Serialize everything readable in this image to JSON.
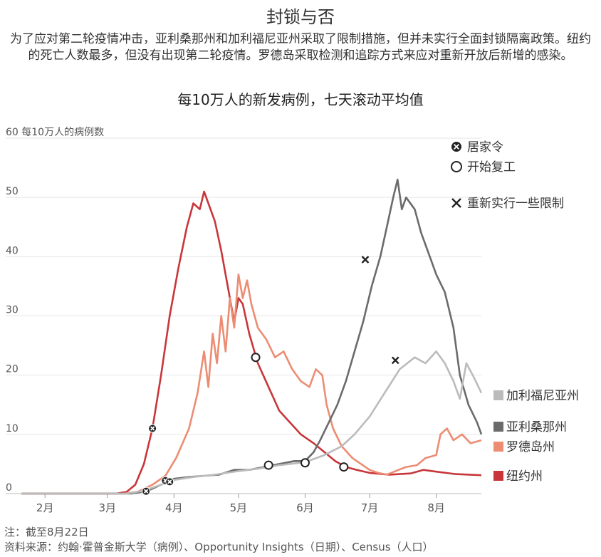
{
  "title": "封锁与否",
  "description": "为了应对第二轮疫情冲击，亚利桑那州和加利福尼亚州采取了限制措施，但并未实行全面封锁隔离政策。纽约的死亡人数最多，但没有出现第二轮疫情。罗德岛采取检测和追踪方式来应对重新开放后新增的感染。",
  "footnote": "注：截至8月22日",
  "source": "资料来源：约翰·霍普金斯大学（病例）、Opportunity Insights（日期）、Census（人口）",
  "chart_data": {
    "type": "line",
    "title": "每10万人的新发病例，七天滚动平均值",
    "ylabel": "每10万人的病例数",
    "ylim": [
      0,
      60
    ],
    "yticks": [
      0,
      10,
      20,
      30,
      40,
      50,
      60
    ],
    "xlim": [
      "2020-01-21",
      "2020-08-22"
    ],
    "xticks": [
      {
        "label": "2月",
        "date": "2020-02-01"
      },
      {
        "label": "3月",
        "date": "2020-03-01"
      },
      {
        "label": "4月",
        "date": "2020-04-01"
      },
      {
        "label": "5月",
        "date": "2020-05-01"
      },
      {
        "label": "6月",
        "date": "2020-06-01"
      },
      {
        "label": "7月",
        "date": "2020-07-01"
      },
      {
        "label": "8月",
        "date": "2020-08-01"
      }
    ],
    "legend": [
      {
        "symbol": "circle-x",
        "label": "居家令"
      },
      {
        "symbol": "circle",
        "label": "开始复工"
      },
      {
        "symbol": "x",
        "label": "重新实行一些限制"
      }
    ],
    "series": [
      {
        "name": "纽约州",
        "color": "#c8363a",
        "points": [
          [
            "2020-01-21",
            0
          ],
          [
            "2020-03-05",
            0
          ],
          [
            "2020-03-10",
            0.3
          ],
          [
            "2020-03-14",
            1.5
          ],
          [
            "2020-03-18",
            5
          ],
          [
            "2020-03-22",
            11
          ],
          [
            "2020-03-26",
            20
          ],
          [
            "2020-03-30",
            30
          ],
          [
            "2020-04-03",
            38
          ],
          [
            "2020-04-07",
            45
          ],
          [
            "2020-04-10",
            49
          ],
          [
            "2020-04-13",
            48
          ],
          [
            "2020-04-15",
            51
          ],
          [
            "2020-04-17",
            49
          ],
          [
            "2020-04-20",
            46
          ],
          [
            "2020-04-23",
            41
          ],
          [
            "2020-04-26",
            35
          ],
          [
            "2020-04-29",
            29
          ],
          [
            "2020-05-01",
            33
          ],
          [
            "2020-05-03",
            32
          ],
          [
            "2020-05-06",
            27
          ],
          [
            "2020-05-10",
            22
          ],
          [
            "2020-05-15",
            18
          ],
          [
            "2020-05-20",
            14
          ],
          [
            "2020-05-25",
            12
          ],
          [
            "2020-05-30",
            10
          ],
          [
            "2020-06-05",
            8.5
          ],
          [
            "2020-06-10",
            7
          ],
          [
            "2020-06-15",
            5.5
          ],
          [
            "2020-06-20",
            4.5
          ],
          [
            "2020-06-25",
            4
          ],
          [
            "2020-07-01",
            3.5
          ],
          [
            "2020-07-10",
            3.2
          ],
          [
            "2020-07-20",
            3.4
          ],
          [
            "2020-07-26",
            4
          ],
          [
            "2020-08-01",
            3.7
          ],
          [
            "2020-08-10",
            3.3
          ],
          [
            "2020-08-22",
            3.1
          ]
        ]
      },
      {
        "name": "罗德岛州",
        "color": "#ec8c73",
        "points": [
          [
            "2020-01-21",
            0
          ],
          [
            "2020-03-08",
            0
          ],
          [
            "2020-03-15",
            0.3
          ],
          [
            "2020-03-22",
            1.5
          ],
          [
            "2020-03-28",
            3
          ],
          [
            "2020-04-02",
            6
          ],
          [
            "2020-04-08",
            11
          ],
          [
            "2020-04-12",
            17
          ],
          [
            "2020-04-15",
            24
          ],
          [
            "2020-04-17",
            18
          ],
          [
            "2020-04-19",
            27
          ],
          [
            "2020-04-21",
            22
          ],
          [
            "2020-04-23",
            30
          ],
          [
            "2020-04-25",
            24
          ],
          [
            "2020-04-27",
            33
          ],
          [
            "2020-04-29",
            28
          ],
          [
            "2020-05-01",
            37
          ],
          [
            "2020-05-03",
            33
          ],
          [
            "2020-05-05",
            36
          ],
          [
            "2020-05-07",
            32
          ],
          [
            "2020-05-10",
            28
          ],
          [
            "2020-05-14",
            26
          ],
          [
            "2020-05-18",
            23
          ],
          [
            "2020-05-22",
            24
          ],
          [
            "2020-05-26",
            21
          ],
          [
            "2020-05-30",
            19
          ],
          [
            "2020-06-03",
            18
          ],
          [
            "2020-06-06",
            21
          ],
          [
            "2020-06-09",
            20
          ],
          [
            "2020-06-11",
            15
          ],
          [
            "2020-06-14",
            11
          ],
          [
            "2020-06-18",
            8
          ],
          [
            "2020-06-23",
            6
          ],
          [
            "2020-06-27",
            5
          ],
          [
            "2020-07-01",
            4
          ],
          [
            "2020-07-05",
            3.5
          ],
          [
            "2020-07-09",
            3.2
          ],
          [
            "2020-07-13",
            3.8
          ],
          [
            "2020-07-18",
            4.5
          ],
          [
            "2020-07-23",
            4.8
          ],
          [
            "2020-07-27",
            6
          ],
          [
            "2020-08-01",
            6.5
          ],
          [
            "2020-08-03",
            10
          ],
          [
            "2020-08-06",
            11
          ],
          [
            "2020-08-09",
            9
          ],
          [
            "2020-08-13",
            10
          ],
          [
            "2020-08-17",
            8.5
          ],
          [
            "2020-08-22",
            9
          ]
        ]
      },
      {
        "name": "亚利桑那州",
        "color": "#6b6b6b",
        "points": [
          [
            "2020-01-21",
            0
          ],
          [
            "2020-03-12",
            0
          ],
          [
            "2020-03-20",
            0.5
          ],
          [
            "2020-03-26",
            1.5
          ],
          [
            "2020-04-01",
            2.5
          ],
          [
            "2020-04-08",
            2.8
          ],
          [
            "2020-04-15",
            3
          ],
          [
            "2020-04-22",
            3.2
          ],
          [
            "2020-04-29",
            4
          ],
          [
            "2020-05-06",
            4
          ],
          [
            "2020-05-13",
            4.5
          ],
          [
            "2020-05-20",
            5
          ],
          [
            "2020-05-27",
            5.5
          ],
          [
            "2020-06-01",
            5.5
          ],
          [
            "2020-06-05",
            7
          ],
          [
            "2020-06-08",
            9
          ],
          [
            "2020-06-12",
            12
          ],
          [
            "2020-06-16",
            15
          ],
          [
            "2020-06-20",
            19
          ],
          [
            "2020-06-24",
            24
          ],
          [
            "2020-06-28",
            29
          ],
          [
            "2020-07-02",
            35
          ],
          [
            "2020-07-06",
            40
          ],
          [
            "2020-07-09",
            45
          ],
          [
            "2020-07-12",
            50
          ],
          [
            "2020-07-14",
            53
          ],
          [
            "2020-07-16",
            48
          ],
          [
            "2020-07-18",
            50
          ],
          [
            "2020-07-22",
            48
          ],
          [
            "2020-07-25",
            44
          ],
          [
            "2020-07-29",
            40
          ],
          [
            "2020-08-01",
            37
          ],
          [
            "2020-08-05",
            34
          ],
          [
            "2020-08-09",
            28
          ],
          [
            "2020-08-12",
            20
          ],
          [
            "2020-08-16",
            15
          ],
          [
            "2020-08-20",
            12
          ],
          [
            "2020-08-22",
            10
          ]
        ]
      },
      {
        "name": "加利福尼亚州",
        "color": "#bbbbbb",
        "points": [
          [
            "2020-01-21",
            0
          ],
          [
            "2020-03-10",
            0
          ],
          [
            "2020-03-18",
            0.5
          ],
          [
            "2020-03-26",
            1.5
          ],
          [
            "2020-04-01",
            2.3
          ],
          [
            "2020-04-10",
            2.8
          ],
          [
            "2020-04-20",
            3.2
          ],
          [
            "2020-05-01",
            3.8
          ],
          [
            "2020-05-10",
            4.2
          ],
          [
            "2020-05-20",
            4.8
          ],
          [
            "2020-06-01",
            5.3
          ],
          [
            "2020-06-10",
            6.5
          ],
          [
            "2020-06-18",
            8
          ],
          [
            "2020-06-24",
            10
          ],
          [
            "2020-07-01",
            13
          ],
          [
            "2020-07-08",
            17
          ],
          [
            "2020-07-15",
            21
          ],
          [
            "2020-07-22",
            23
          ],
          [
            "2020-07-27",
            22
          ],
          [
            "2020-08-01",
            24
          ],
          [
            "2020-08-05",
            22
          ],
          [
            "2020-08-09",
            19
          ],
          [
            "2020-08-12",
            16
          ],
          [
            "2020-08-15",
            22
          ],
          [
            "2020-08-18",
            20
          ],
          [
            "2020-08-22",
            17
          ]
        ]
      }
    ],
    "markers": [
      {
        "series": "纽约州",
        "type": "circle-x",
        "date": "2020-03-22",
        "y": 11
      },
      {
        "series": "罗德岛州",
        "type": "circle-x",
        "date": "2020-03-28",
        "y": 2.2
      },
      {
        "series": "罗德岛州",
        "type": "circle",
        "date": "2020-05-09",
        "y": 23
      },
      {
        "series": "罗德岛州",
        "type": "circle",
        "date": "2020-06-01",
        "y": 5.2
      },
      {
        "series": "亚利桑那州",
        "type": "circle-x",
        "date": "2020-03-30",
        "y": 2
      },
      {
        "series": "亚利桑那州",
        "type": "circle",
        "date": "2020-05-15",
        "y": 4.8
      },
      {
        "series": "亚利桑那州",
        "type": "x",
        "date": "2020-06-29",
        "y": 39.5
      },
      {
        "series": "加利福尼亚州",
        "type": "circle-x",
        "date": "2020-03-19",
        "y": 0.4
      },
      {
        "series": "加利福尼亚州",
        "type": "circle",
        "date": "2020-06-19",
        "y": 4.5
      },
      {
        "series": "加利福尼亚州",
        "type": "x",
        "date": "2020-07-13",
        "y": 22.5
      }
    ]
  }
}
